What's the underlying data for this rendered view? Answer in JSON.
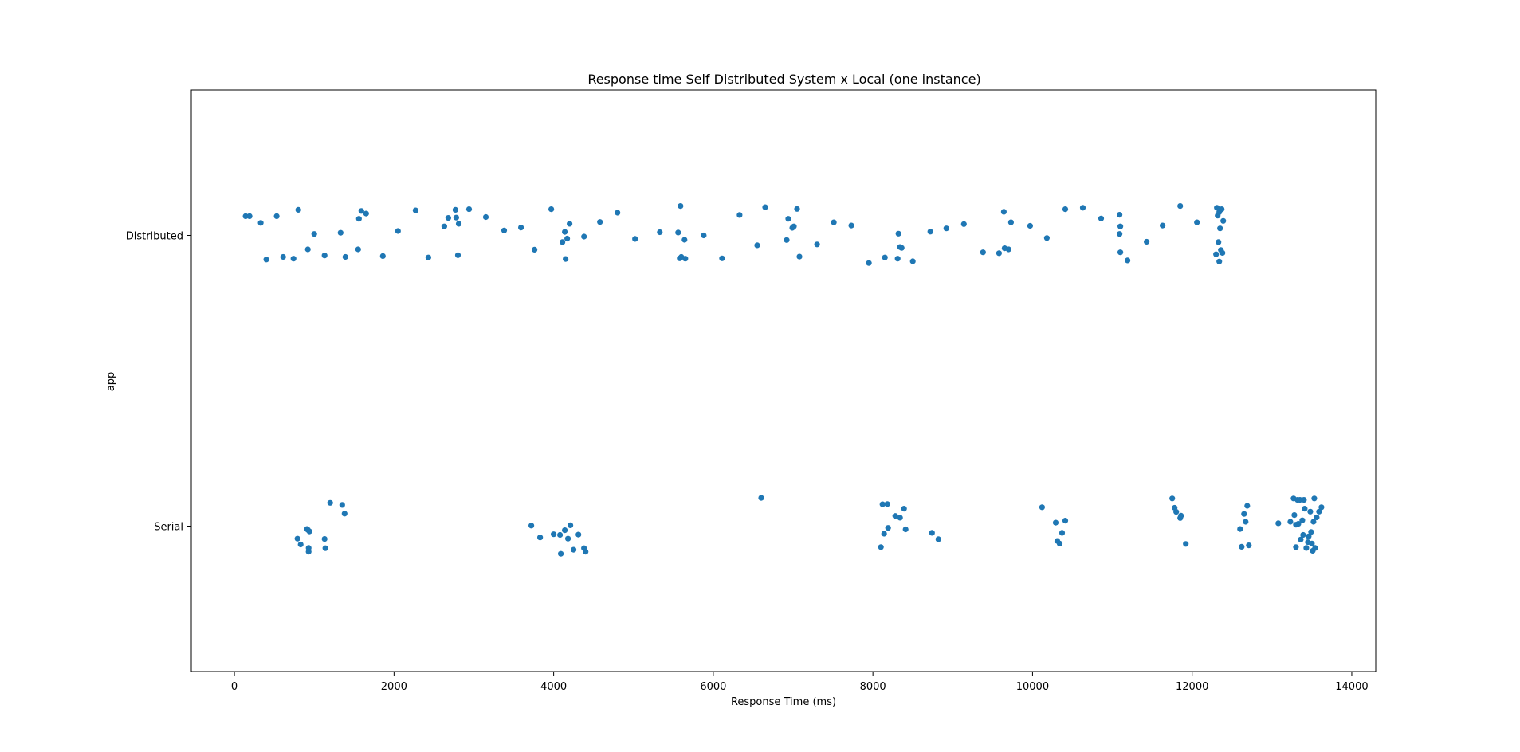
{
  "chart_data": {
    "type": "scatter",
    "title": "Response time Self Distributed System x Local (one instance)",
    "xlabel": "Response Time (ms)",
    "ylabel": "app",
    "xlim": [
      -540,
      14300
    ],
    "xticks": [
      0,
      2000,
      4000,
      6000,
      8000,
      10000,
      12000,
      14000
    ],
    "xtick_labels": [
      "0",
      "2000",
      "4000",
      "6000",
      "8000",
      "10000",
      "12000",
      "14000"
    ],
    "categories": [
      "Distributed",
      "Serial"
    ],
    "ylim": [
      -0.5,
      1.5
    ],
    "grid": false,
    "marker_color": "#1f77b4",
    "series": [
      {
        "category": "Distributed",
        "x": [
          140,
          190,
          330,
          400,
          530,
          610,
          740,
          800,
          920,
          1000,
          1130,
          1330,
          1390,
          1550,
          1560,
          1590,
          1650,
          1860,
          2050,
          2270,
          2430,
          2630,
          2680,
          2770,
          2780,
          2800,
          2810,
          2940,
          3150,
          3380,
          3590,
          3760,
          3970,
          4110,
          4140,
          4150,
          4170,
          4200,
          4380,
          4580,
          4800,
          5020,
          5330,
          5560,
          5580,
          5590,
          5600,
          5640,
          5650,
          5880,
          6110,
          6330,
          6550,
          6650,
          6920,
          6940,
          6990,
          7010,
          7050,
          7080,
          7300,
          7510,
          7730,
          7950,
          8150,
          8310,
          8320,
          8340,
          8360,
          8500,
          8720,
          8920,
          9140,
          9380,
          9580,
          9640,
          9650,
          9700,
          9730,
          9970,
          10180,
          10410,
          10630,
          10860,
          11090,
          11090,
          11100,
          11100,
          11190,
          11430,
          11630,
          11850,
          12060,
          12300,
          12310,
          12320,
          12330,
          12340,
          12340,
          12350,
          12360,
          12370,
          12380,
          12390
        ],
        "y": [
          0.066,
          0.066,
          0.043,
          -0.083,
          0.066,
          -0.074,
          -0.08,
          0.088,
          -0.048,
          0.005,
          -0.069,
          0.009,
          -0.074,
          -0.048,
          0.057,
          0.084,
          0.075,
          -0.071,
          0.015,
          0.086,
          -0.076,
          0.031,
          0.06,
          0.088,
          0.061,
          -0.068,
          0.04,
          0.09,
          0.063,
          0.017,
          0.027,
          -0.049,
          0.09,
          -0.023,
          0.012,
          -0.081,
          -0.011,
          0.04,
          -0.004,
          0.046,
          0.078,
          -0.012,
          0.011,
          0.01,
          -0.079,
          0.101,
          -0.074,
          -0.015,
          -0.08,
          0.0,
          -0.079,
          0.07,
          -0.034,
          0.097,
          -0.016,
          0.057,
          0.026,
          0.031,
          0.091,
          -0.073,
          -0.031,
          0.045,
          0.034,
          -0.095,
          -0.076,
          -0.08,
          0.006,
          -0.04,
          -0.043,
          -0.089,
          0.013,
          0.024,
          0.039,
          -0.058,
          -0.061,
          0.081,
          -0.044,
          -0.048,
          0.045,
          0.033,
          -0.009,
          0.09,
          0.095,
          0.058,
          0.005,
          0.071,
          0.031,
          -0.058,
          -0.086,
          -0.022,
          0.034,
          0.101,
          0.045,
          -0.065,
          0.095,
          0.068,
          -0.023,
          0.08,
          -0.09,
          0.024,
          -0.05,
          0.09,
          -0.06,
          0.05
        ]
      },
      {
        "category": "Serial",
        "x": [
          790,
          830,
          910,
          920,
          930,
          930,
          940,
          1130,
          1140,
          1200,
          1350,
          1380,
          3720,
          3830,
          4000,
          4080,
          4090,
          4140,
          4180,
          4210,
          4250,
          4310,
          4380,
          4400,
          6600,
          8100,
          8120,
          8140,
          8180,
          8190,
          8280,
          8340,
          8390,
          8410,
          8740,
          8820,
          10120,
          10290,
          10310,
          10340,
          10370,
          10410,
          11750,
          11780,
          11800,
          11850,
          11860,
          11920,
          12600,
          12620,
          12650,
          12670,
          12690,
          12710,
          13080,
          13230,
          13270,
          13280,
          13300,
          13300,
          13320,
          13330,
          13350,
          13360,
          13380,
          13390,
          13400,
          13410,
          13430,
          13450,
          13460,
          13480,
          13490,
          13500,
          13510,
          13520,
          13530,
          13540,
          13560,
          13590,
          13620
        ],
        "y": [
          -0.043,
          -0.063,
          -0.01,
          -0.013,
          -0.088,
          -0.075,
          -0.018,
          -0.044,
          -0.076,
          0.08,
          0.073,
          0.043,
          0.002,
          -0.039,
          -0.028,
          -0.03,
          -0.095,
          -0.014,
          -0.043,
          0.003,
          -0.081,
          -0.029,
          -0.076,
          -0.088,
          0.097,
          -0.072,
          0.075,
          -0.026,
          0.076,
          -0.006,
          0.035,
          0.029,
          0.06,
          -0.011,
          -0.023,
          -0.045,
          0.065,
          0.012,
          -0.051,
          -0.06,
          -0.023,
          0.019,
          0.095,
          0.063,
          0.049,
          0.028,
          0.036,
          -0.061,
          -0.01,
          -0.071,
          0.042,
          0.015,
          0.07,
          -0.066,
          0.01,
          0.015,
          0.095,
          0.038,
          -0.072,
          0.005,
          0.09,
          0.008,
          0.09,
          -0.046,
          0.02,
          -0.03,
          0.09,
          0.06,
          -0.075,
          -0.055,
          -0.035,
          0.05,
          -0.02,
          -0.06,
          -0.085,
          0.015,
          0.095,
          -0.075,
          0.03,
          0.05,
          0.065
        ]
      }
    ]
  }
}
